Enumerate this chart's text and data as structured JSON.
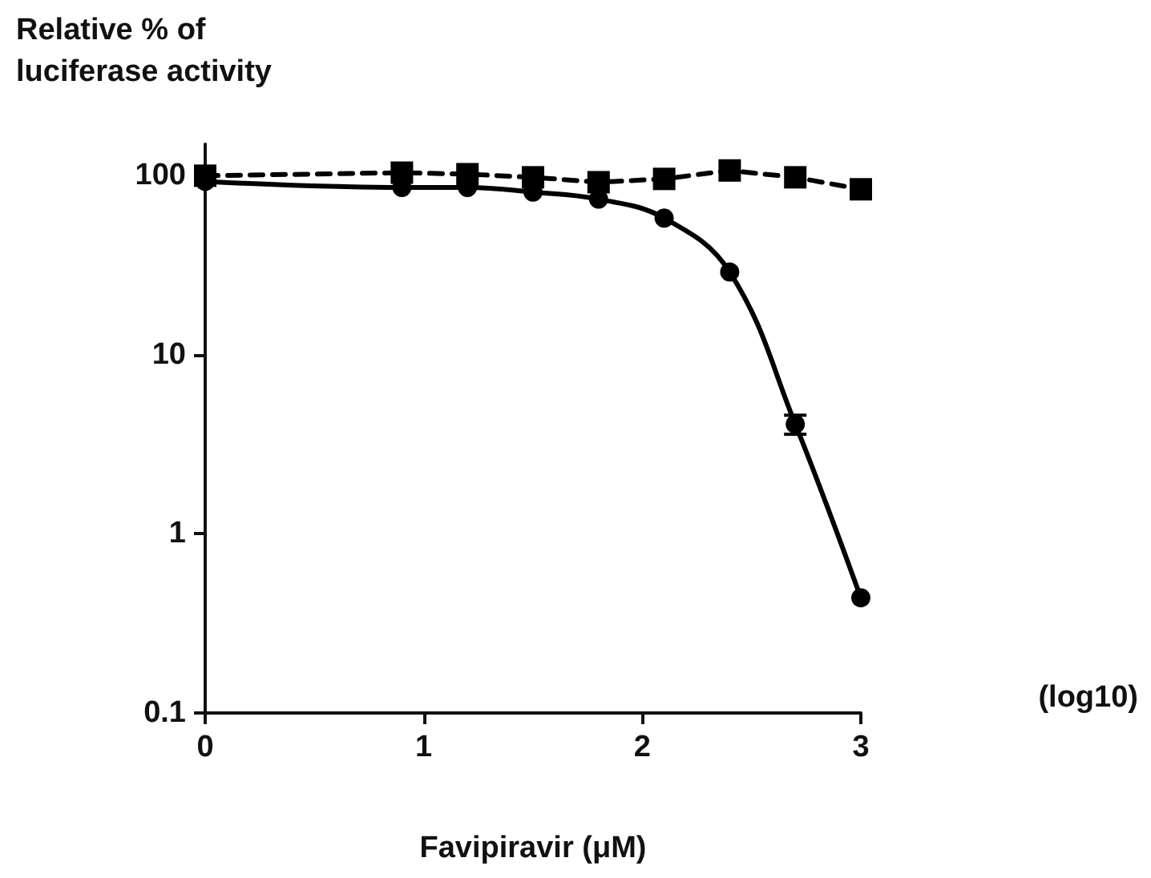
{
  "chart_data": {
    "type": "line",
    "ylabel": "Relative % of\nluciferase activity",
    "xlabel": "Favipiravir (μM)",
    "annotations": [
      "(log10)"
    ],
    "log": "y",
    "grid": false,
    "xlim": [
      0,
      3
    ],
    "xticks": [
      0,
      1,
      2,
      3
    ],
    "ylim": [
      0.1,
      150
    ],
    "yticks": [
      0.1,
      1,
      10,
      100
    ],
    "series": [
      {
        "color": "#000000",
        "marker": "square",
        "line_style": "dashed",
        "x": [
          0,
          0.9,
          1.2,
          1.5,
          1.8,
          2.1,
          2.4,
          2.7,
          3.0
        ],
        "values": [
          100,
          104,
          102,
          98,
          92,
          96,
          107,
          98,
          84
        ]
      },
      {
        "color": "#000000",
        "marker": "circle",
        "line_style": "solid",
        "x": [
          0,
          0.9,
          1.2,
          1.5,
          1.8,
          2.1,
          2.4,
          2.7,
          3.0
        ],
        "values": [
          93,
          86,
          86,
          81,
          74,
          58,
          29,
          4.1,
          0.44
        ],
        "errors": [
          null,
          null,
          null,
          null,
          null,
          null,
          null,
          [
            3.6,
            4.6
          ],
          null
        ]
      }
    ]
  }
}
